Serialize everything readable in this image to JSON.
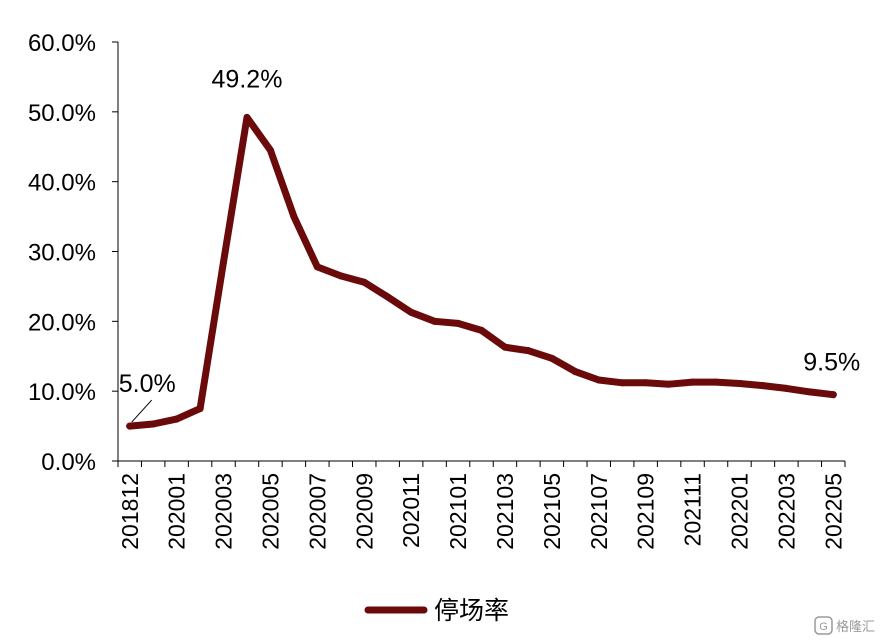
{
  "chart_data": {
    "type": "line",
    "title": "",
    "xlabel": "",
    "ylabel": "",
    "ylim": [
      0,
      60
    ],
    "y_ticks": [
      "0.0%",
      "10.0%",
      "20.0%",
      "30.0%",
      "40.0%",
      "50.0%",
      "60.0%"
    ],
    "x_tick_labels": [
      "201812",
      "202001",
      "202003",
      "202005",
      "202007",
      "202009",
      "202011",
      "202101",
      "202103",
      "202105",
      "202107",
      "202109",
      "202111",
      "202201",
      "202203",
      "202205"
    ],
    "grid": false,
    "legend_position": "bottom-center",
    "series": [
      {
        "name": "停场率",
        "color": "#6b0a0a",
        "x": [
          "201812",
          "201912",
          "202001",
          "202002",
          "202003",
          "202004",
          "202005",
          "202006",
          "202007",
          "202008",
          "202009",
          "202010",
          "202011",
          "202012",
          "202101",
          "202102",
          "202103",
          "202104",
          "202105",
          "202106",
          "202107",
          "202108",
          "202109",
          "202110",
          "202111",
          "202112",
          "202201",
          "202202",
          "202203",
          "202204",
          "202205"
        ],
        "values": [
          5.0,
          5.3,
          6.0,
          7.5,
          28.5,
          49.2,
          44.5,
          35.0,
          27.8,
          26.5,
          25.6,
          23.5,
          21.3,
          20.0,
          19.7,
          18.7,
          16.3,
          15.8,
          14.7,
          12.8,
          11.6,
          11.2,
          11.2,
          11.0,
          11.3,
          11.3,
          11.1,
          10.8,
          10.4,
          9.9,
          9.5
        ]
      }
    ],
    "annotations": [
      {
        "label": "5.0%",
        "index": 0
      },
      {
        "label": "49.2%",
        "index": 5
      },
      {
        "label": "9.5%",
        "index": 30
      }
    ]
  },
  "watermark": {
    "text": "格隆汇",
    "icon": "gelonghui-logo-icon"
  }
}
